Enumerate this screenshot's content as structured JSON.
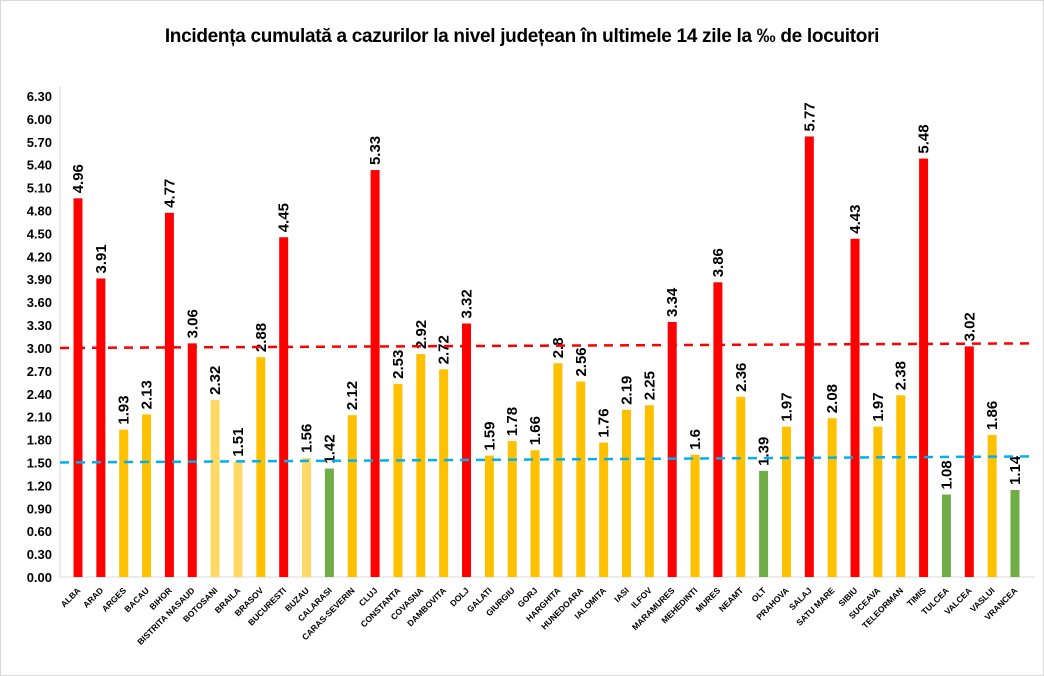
{
  "chart_data": {
    "type": "bar",
    "title": "Incidența cumulată a cazurilor la nivel județean în ultimele 14 zile la ‰ de locuitori",
    "xlabel": "",
    "ylabel": "",
    "ylim": [
      0,
      6.3
    ],
    "ytick_step": 0.3,
    "yticks": [
      "0.00",
      "0.30",
      "0.60",
      "0.90",
      "1.20",
      "1.50",
      "1.80",
      "2.10",
      "2.40",
      "2.70",
      "3.00",
      "3.30",
      "3.60",
      "3.90",
      "4.20",
      "4.50",
      "4.80",
      "5.10",
      "5.40",
      "5.70",
      "6.00",
      "6.30"
    ],
    "grid": false,
    "categories": [
      "ALBA",
      "ARAD",
      "ARGES",
      "BACAU",
      "BIHOR",
      "BISTRITA NASAUD",
      "BOTOSANI",
      "BRAILA",
      "BRASOV",
      "BUCURESTI",
      "BUZAU",
      "CALARASI",
      "CARAS-SEVERIN",
      "CLUJ",
      "CONSTANTA",
      "COVASNA",
      "DAMBOVITA",
      "DOLJ",
      "GALATI",
      "GIURGIU",
      "GORJ",
      "HARGHITA",
      "HUNEDOARA",
      "IALOMITA",
      "IASI",
      "ILFOV",
      "MARAMURES",
      "MEHEDINTI",
      "MURES",
      "NEAMT",
      "OLT",
      "PRAHOVA",
      "SALAJ",
      "SATU MARE",
      "SIBIU",
      "SUCEAVA",
      "TELEORMAN",
      "TIMIS",
      "TULCEA",
      "VALCEA",
      "VASLUI",
      "VRANCEA"
    ],
    "values": [
      4.96,
      3.91,
      1.93,
      2.13,
      4.77,
      3.06,
      2.32,
      1.51,
      2.88,
      4.45,
      1.56,
      1.42,
      2.12,
      5.33,
      2.53,
      2.92,
      2.72,
      3.32,
      1.59,
      1.78,
      1.66,
      2.8,
      2.56,
      1.76,
      2.19,
      2.25,
      3.34,
      1.6,
      3.86,
      2.36,
      1.39,
      1.97,
      5.77,
      2.08,
      4.43,
      1.97,
      2.38,
      5.48,
      1.08,
      3.02,
      1.86,
      1.14
    ],
    "data_labels": [
      "4.96",
      "3.91",
      "1.93",
      "2.13",
      "4.77",
      "3.06",
      "2.32",
      "1.51",
      "2.88",
      "4.45",
      "1.56",
      "1.42",
      "2.12",
      "5.33",
      "2.53",
      "2.92",
      "2.72",
      "3.32",
      "1.59",
      "1.78",
      "1.66",
      "2.8",
      "2.56",
      "1.76",
      "2.19",
      "2.25",
      "3.34",
      "1.6",
      "3.86",
      "2.36",
      "1.39",
      "1.97",
      "5.77",
      "2.08",
      "4.43",
      "1.97",
      "2.38",
      "5.48",
      "1.08",
      "3.02",
      "1.86",
      "1.14"
    ],
    "bar_colors": [
      "#FF0000",
      "#FF0000",
      "#FFC000",
      "#FFC000",
      "#FF0000",
      "#FF0000",
      "#FFD966",
      "#FFD966",
      "#FFC000",
      "#FF0000",
      "#FFD966",
      "#70AD47",
      "#FFC000",
      "#FF0000",
      "#FFC000",
      "#FFC000",
      "#FFC000",
      "#FF0000",
      "#FFC000",
      "#FFC000",
      "#FFC000",
      "#FFC000",
      "#FFC000",
      "#FFC000",
      "#FFC000",
      "#FFC000",
      "#FF0000",
      "#FFC000",
      "#FF0000",
      "#FFC000",
      "#70AD47",
      "#FFC000",
      "#FF0000",
      "#FFC000",
      "#FF0000",
      "#FFC000",
      "#FFC000",
      "#FF0000",
      "#70AD47",
      "#FF0000",
      "#FFC000",
      "#70AD47"
    ],
    "threshold_lines": [
      {
        "color": "#FF0000",
        "style": "dashed",
        "start": 3.0,
        "end": 3.06
      },
      {
        "color": "#00B0F0",
        "style": "dashed",
        "start": 1.5,
        "end": 1.58
      }
    ]
  }
}
